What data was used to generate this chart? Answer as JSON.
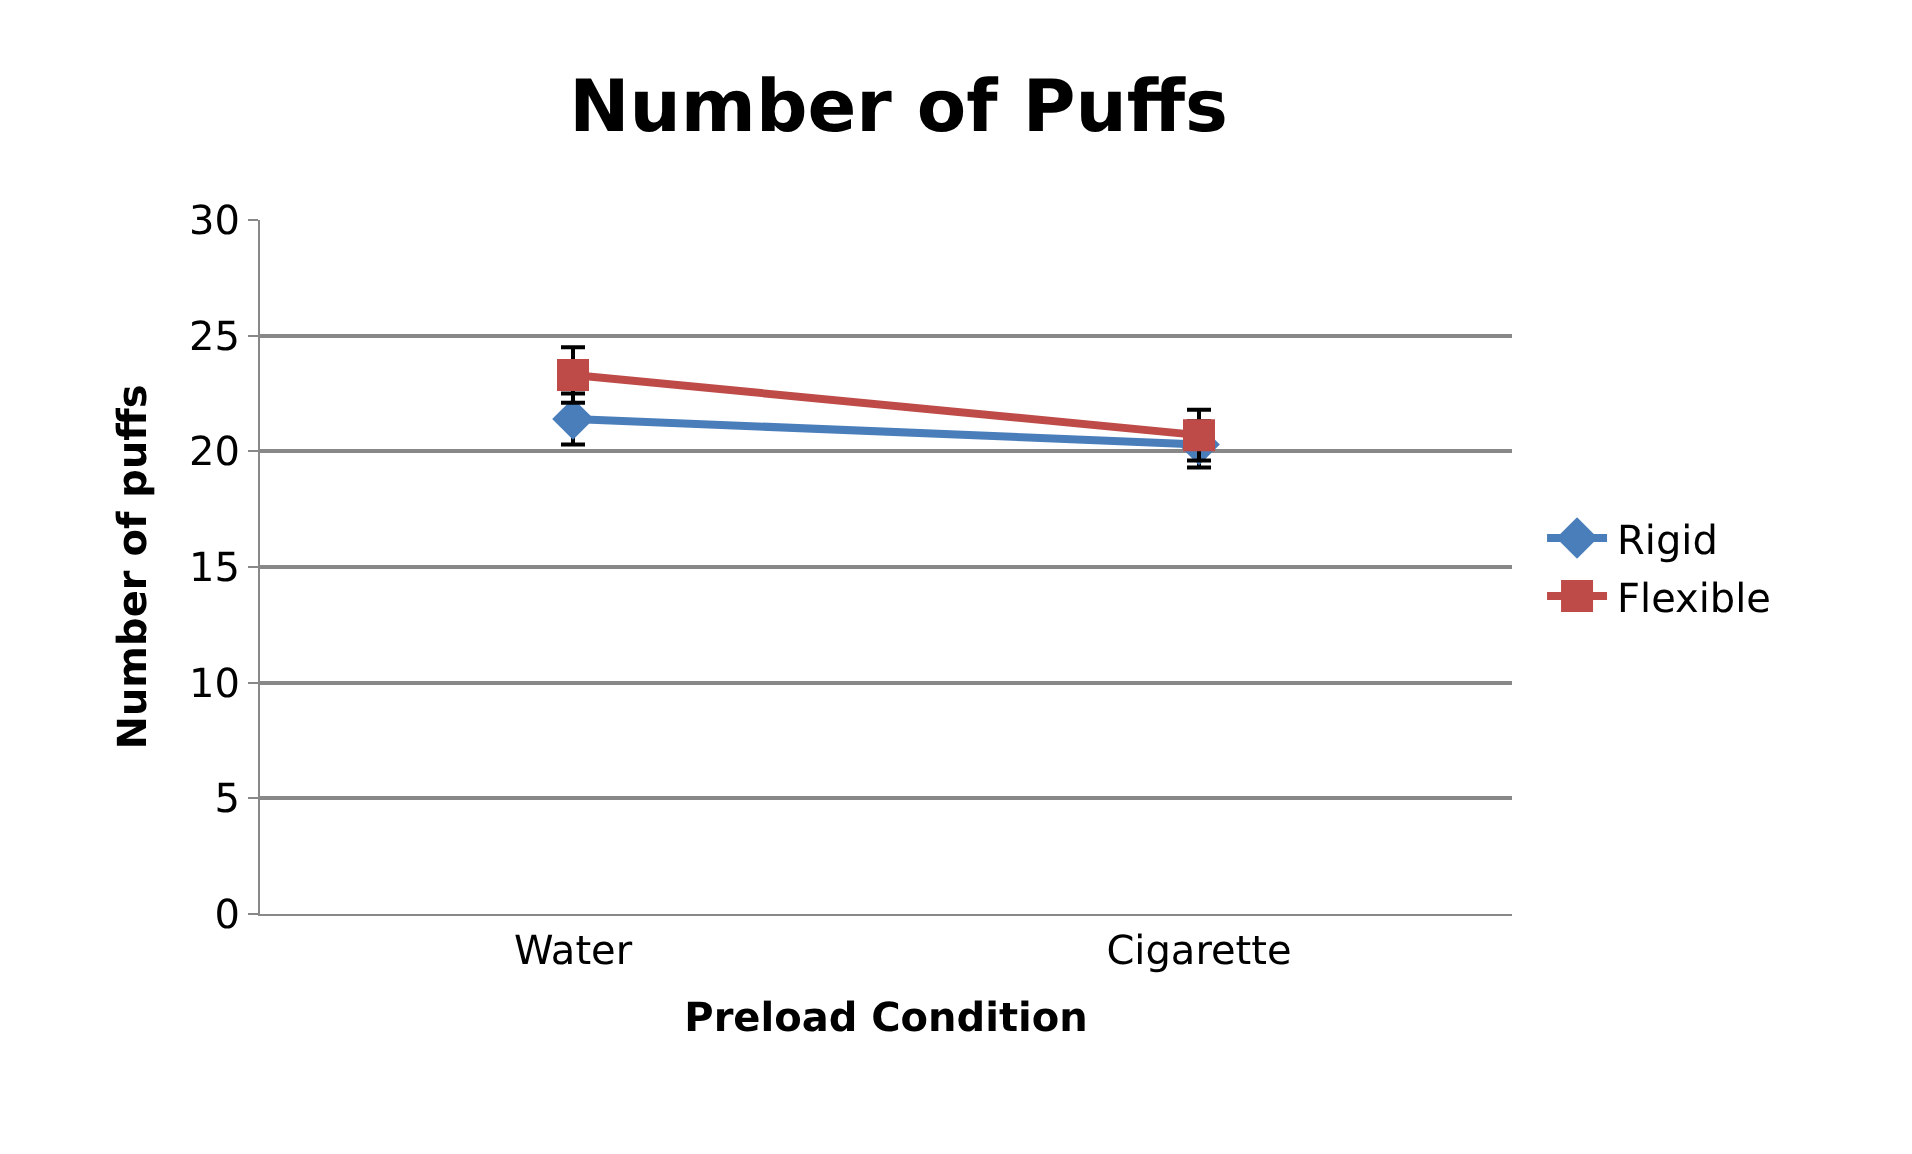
{
  "chart_data": {
    "type": "line",
    "title": "Number of Puffs",
    "xlabel": "Preload Condition",
    "ylabel": "Number of puffs",
    "categories": [
      "Water",
      "Cigarette"
    ],
    "series": [
      {
        "name": "Rigid",
        "color": "#4a7ebb",
        "values": [
          21.4,
          20.3
        ],
        "errors": [
          1.1,
          1.0
        ],
        "marker": "diamond"
      },
      {
        "name": "Flexible",
        "color": "#be4b48",
        "values": [
          23.3,
          20.7
        ],
        "errors": [
          1.2,
          1.1
        ],
        "marker": "square"
      }
    ],
    "ylim": [
      0,
      30
    ],
    "yticks": [
      0,
      5,
      10,
      15,
      20,
      25,
      30
    ],
    "grid": "y",
    "legend": "right",
    "line_style": "solid"
  }
}
